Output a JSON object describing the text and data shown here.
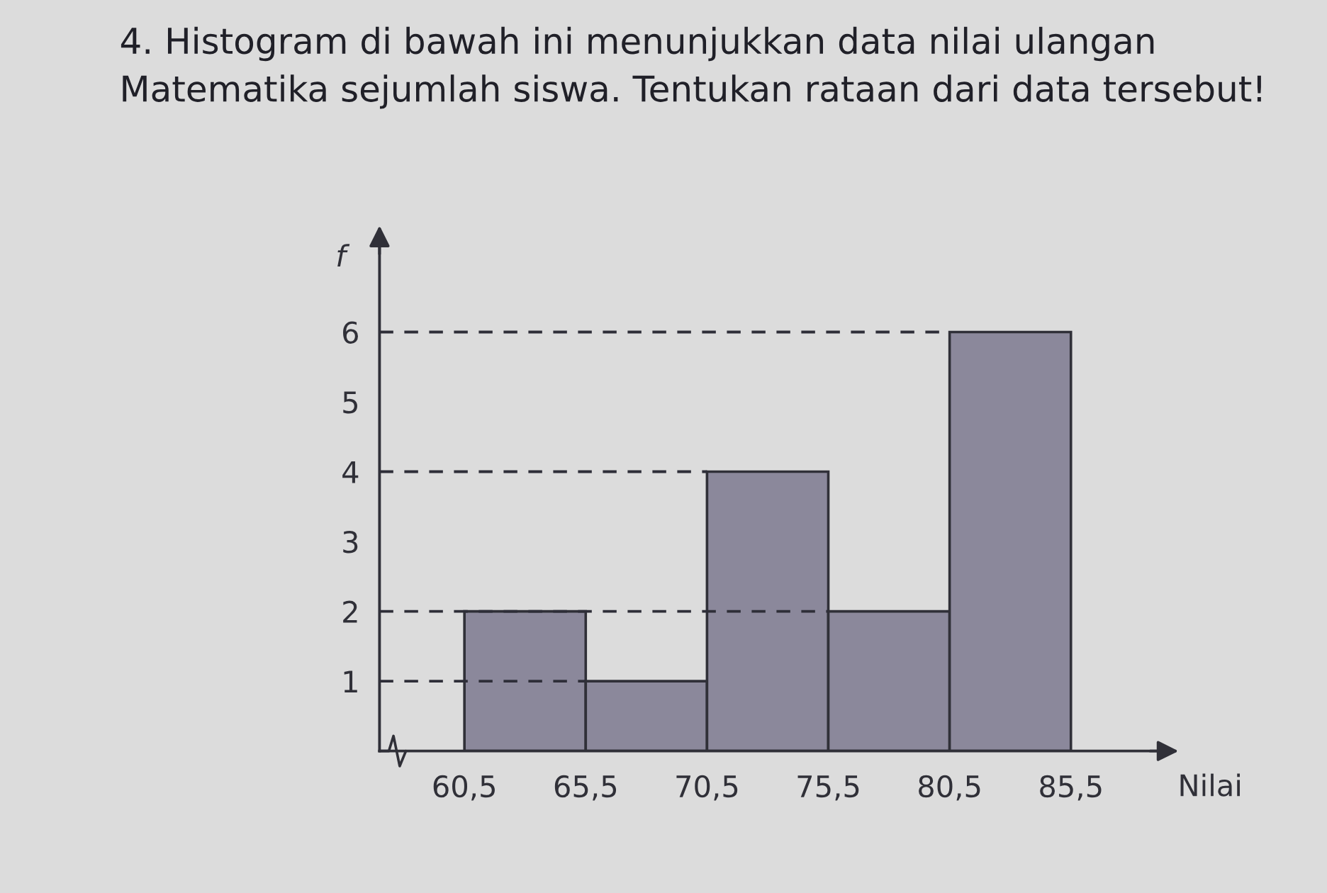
{
  "chart_data": {
    "type": "histogram",
    "title": "4. Histogram di bawah ini menunjukkan data nilai ulangan Matematika sejumlah siswa. Tentukan rataan dari data tersebut!",
    "xlabel": "Nilai",
    "ylabel": "f",
    "bins": [
      60.5,
      65.5,
      70.5,
      75.5,
      80.5,
      85.5
    ],
    "values": [
      2,
      1,
      4,
      2,
      6
    ],
    "color": "#8b889b",
    "xlim": [
      57,
      89
    ],
    "ylim": [
      0,
      7.2
    ],
    "xticks": [
      {
        "value": 60.5,
        "label": "60,5"
      },
      {
        "value": 65.5,
        "label": "65,5"
      },
      {
        "value": 70.5,
        "label": "70,5"
      },
      {
        "value": 75.5,
        "label": "75,5"
      },
      {
        "value": 80.5,
        "label": "80,5"
      },
      {
        "value": 85.5,
        "label": "85,5"
      }
    ],
    "yticks": [
      1,
      2,
      3,
      4,
      5,
      6
    ],
    "grid": false,
    "ref_lines": [
      {
        "axis": "y",
        "value": 1,
        "line_style": "dashed",
        "color": "#2e2e38"
      },
      {
        "axis": "y",
        "value": 2,
        "line_style": "dashed",
        "color": "#2e2e38"
      },
      {
        "axis": "y",
        "value": 4,
        "line_style": "dashed",
        "color": "#2e2e38"
      },
      {
        "axis": "y",
        "value": 6,
        "line_style": "dashed",
        "color": "#2e2e38"
      }
    ]
  }
}
